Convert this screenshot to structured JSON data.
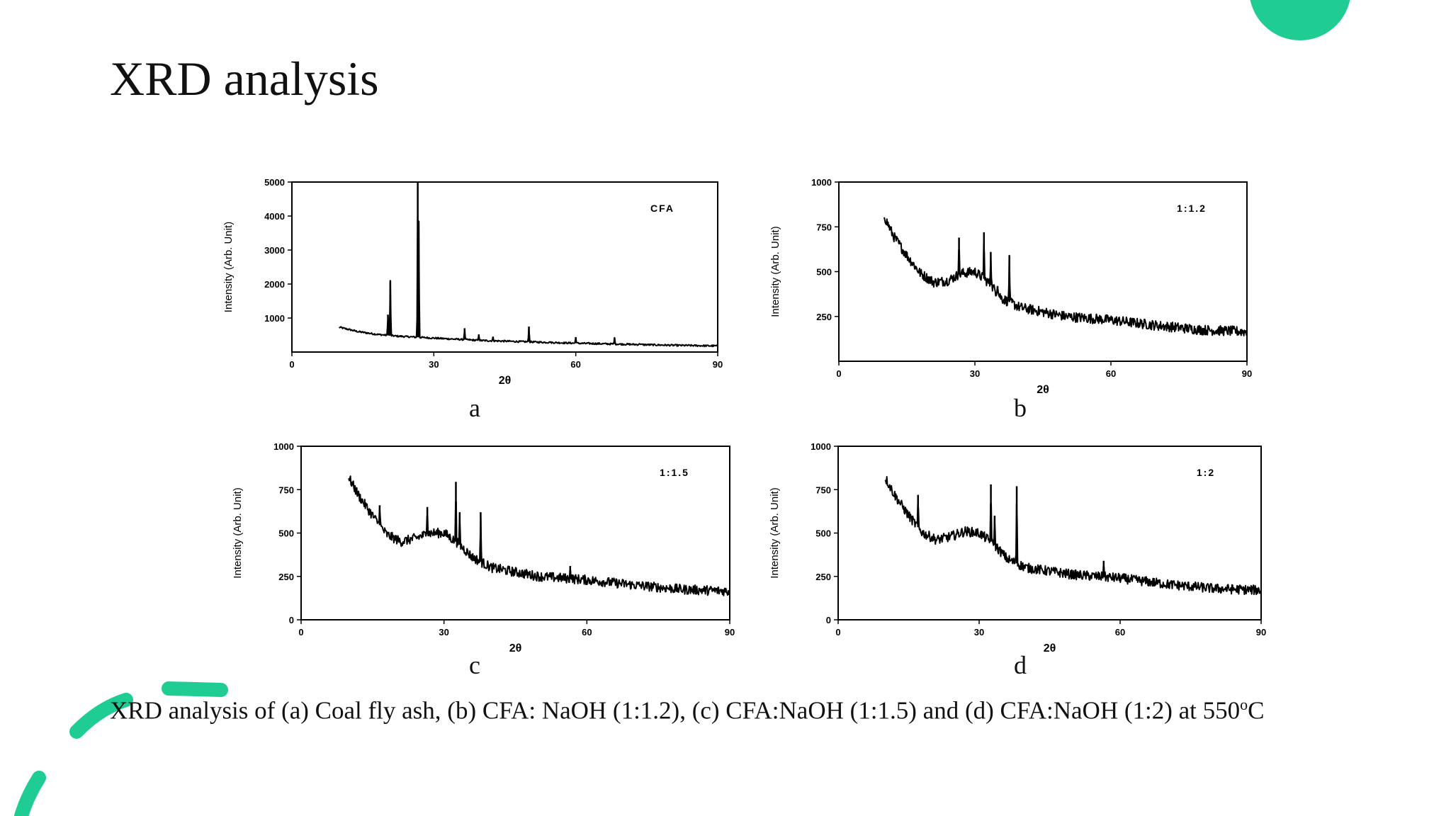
{
  "slide": {
    "title": "XRD analysis",
    "caption_main": "XRD analysis of (a) Coal fly ash, (b) CFA: NaOH (1:1.2), (c) CFA:NaOH (1:1.5) and (d) CFA:NaOH (1:2)  at 550",
    "caption_sup": "o",
    "caption_end": "C",
    "accent_color": "#1fcc93"
  },
  "chart_data": [
    {
      "type": "line",
      "panel_label": "a",
      "legend_text": "CFA",
      "xlabel": "2θ",
      "ylabel": "Intensity (Arb. Unit)",
      "xlim": [
        0,
        90
      ],
      "ylim": [
        0,
        5000
      ],
      "xticks": [
        "0",
        "30",
        "60",
        "90"
      ],
      "yticks": [
        {
          "value": 1000,
          "label": "1000"
        },
        {
          "value": 2000,
          "label": "2000"
        },
        {
          "value": 3000,
          "label": "3000"
        },
        {
          "value": 4000,
          "label": "4000"
        },
        {
          "value": 5000,
          "label": "5000"
        }
      ],
      "baseline": [
        [
          10,
          730
        ],
        [
          14,
          600
        ],
        [
          18,
          520
        ],
        [
          22,
          470
        ],
        [
          26,
          440
        ],
        [
          30,
          410
        ],
        [
          40,
          340
        ],
        [
          50,
          300
        ],
        [
          60,
          260
        ],
        [
          70,
          230
        ],
        [
          80,
          200
        ],
        [
          90,
          180
        ]
      ],
      "noise": 25,
      "peaks": [
        [
          20.8,
          2100
        ],
        [
          20.3,
          1100
        ],
        [
          26.6,
          5000
        ],
        [
          26.8,
          3850
        ],
        [
          36.5,
          700
        ],
        [
          39.5,
          520
        ],
        [
          42.5,
          450
        ],
        [
          50.1,
          750
        ],
        [
          54.5,
          300
        ],
        [
          60.0,
          440
        ],
        [
          68.2,
          420
        ],
        [
          73.5,
          250
        ]
      ]
    },
    {
      "type": "line",
      "panel_label": "b",
      "legend_text": "1:1.2",
      "xlabel": "2θ",
      "ylabel": "Intensity (Arb. Unit)",
      "xlim": [
        0,
        90
      ],
      "ylim": [
        0,
        1000
      ],
      "xticks": [
        "0",
        "30",
        "60",
        "90"
      ],
      "yticks": [
        {
          "value": 250,
          "label": "250"
        },
        {
          "value": 500,
          "label": "500"
        },
        {
          "value": 750,
          "label": "750"
        },
        {
          "value": 1000,
          "label": "1000"
        }
      ],
      "baseline": [
        [
          10,
          810
        ],
        [
          12,
          700
        ],
        [
          15,
          590
        ],
        [
          18,
          490
        ],
        [
          21,
          440
        ],
        [
          24,
          450
        ],
        [
          27,
          490
        ],
        [
          30,
          500
        ],
        [
          33,
          440
        ],
        [
          36,
          350
        ],
        [
          40,
          300
        ],
        [
          50,
          250
        ],
        [
          60,
          230
        ],
        [
          70,
          200
        ],
        [
          80,
          175
        ],
        [
          90,
          165
        ]
      ],
      "noise": 28,
      "peaks": [
        [
          26.5,
          690
        ],
        [
          32.0,
          720
        ],
        [
          33.5,
          610
        ],
        [
          37.6,
          590
        ],
        [
          35.0,
          420
        ]
      ]
    },
    {
      "type": "line",
      "panel_label": "c",
      "legend_text": "1:1.5",
      "xlabel": "2θ",
      "ylabel": "Intensity (Arb. Unit)",
      "xlim": [
        0,
        90
      ],
      "ylim": [
        0,
        1000
      ],
      "xticks": [
        "0",
        "30",
        "60",
        "90"
      ],
      "yticks": [
        {
          "value": 0,
          "label": "0"
        },
        {
          "value": 250,
          "label": "250"
        },
        {
          "value": 500,
          "label": "500"
        },
        {
          "value": 750,
          "label": "750"
        },
        {
          "value": 1000,
          "label": "1000"
        }
      ],
      "baseline": [
        [
          10,
          820
        ],
        [
          12,
          720
        ],
        [
          15,
          600
        ],
        [
          18,
          490
        ],
        [
          21,
          450
        ],
        [
          24,
          470
        ],
        [
          27,
          500
        ],
        [
          30,
          500
        ],
        [
          33,
          440
        ],
        [
          36,
          360
        ],
        [
          40,
          300
        ],
        [
          50,
          250
        ],
        [
          60,
          230
        ],
        [
          70,
          200
        ],
        [
          80,
          175
        ],
        [
          90,
          165
        ]
      ],
      "noise": 28,
      "peaks": [
        [
          16.5,
          660
        ],
        [
          26.5,
          650
        ],
        [
          32.5,
          795
        ],
        [
          33.3,
          620
        ],
        [
          37.7,
          620
        ],
        [
          56.5,
          310
        ]
      ]
    },
    {
      "type": "line",
      "panel_label": "d",
      "legend_text": "1:2",
      "xlabel": "2θ",
      "ylabel": "Intensity (Arb. Unit)",
      "xlim": [
        0,
        90
      ],
      "ylim": [
        0,
        1000
      ],
      "xticks": [
        "0",
        "30",
        "60",
        "90"
      ],
      "yticks": [
        {
          "value": 0,
          "label": "0"
        },
        {
          "value": 250,
          "label": "250"
        },
        {
          "value": 500,
          "label": "500"
        },
        {
          "value": 750,
          "label": "750"
        },
        {
          "value": 1000,
          "label": "1000"
        }
      ],
      "baseline": [
        [
          10,
          820
        ],
        [
          12,
          720
        ],
        [
          15,
          600
        ],
        [
          18,
          500
        ],
        [
          21,
          460
        ],
        [
          24,
          480
        ],
        [
          27,
          510
        ],
        [
          30,
          500
        ],
        [
          33,
          440
        ],
        [
          36,
          350
        ],
        [
          40,
          300
        ],
        [
          50,
          260
        ],
        [
          60,
          240
        ],
        [
          70,
          205
        ],
        [
          80,
          180
        ],
        [
          90,
          170
        ]
      ],
      "noise": 28,
      "peaks": [
        [
          17.0,
          720
        ],
        [
          32.5,
          780
        ],
        [
          33.3,
          600
        ],
        [
          38.0,
          770
        ],
        [
          56.5,
          340
        ]
      ]
    }
  ]
}
